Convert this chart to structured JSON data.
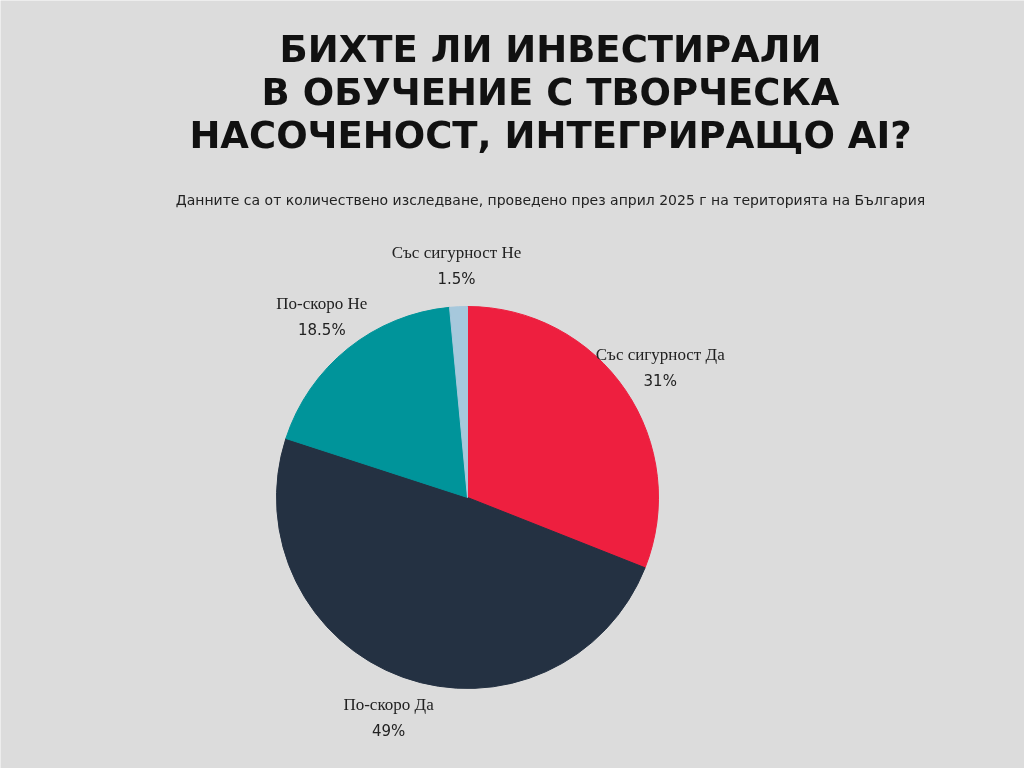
{
  "chart_data": {
    "type": "pie",
    "title": "БИХТЕ ЛИ ИНВЕСТИРАЛИ\nВ ОБУЧЕНИЕ С ТВОРЧЕСКА\nНАСОЧЕНОСТ, ИНТЕГРИРАЩО AI?",
    "subtitle": "Данните са от количествено изследване, проведено през април 2025 г на територията на България",
    "categories": [
      "Със сигурност Да",
      "По-скоро Да",
      "По-скоро Не",
      "Със сигурност Не"
    ],
    "values": [
      31,
      49,
      18.5,
      1.5
    ],
    "colors": [
      "#ee1f3f",
      "#243142",
      "#00949a",
      "#a6c8dc"
    ],
    "value_labels": [
      "31%",
      "49%",
      "18.5%",
      "1.5%"
    ]
  }
}
